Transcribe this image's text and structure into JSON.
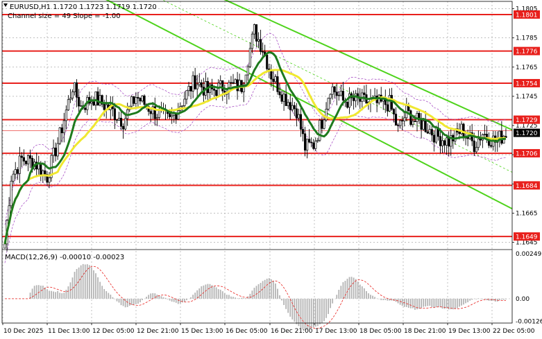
{
  "chart_data": [
    {
      "type": "candlestick",
      "title": "EURUSD,H1  1.1720 1.1723 1.1719 1.1720",
      "subtitle": "Channel size = 49 Slope = -1.00",
      "x_ticks": [
        "10 Dec 2025",
        "11 Dec 13:00",
        "12 Dec 05:00",
        "12 Dec 21:00",
        "15 Dec 13:00",
        "16 Dec 05:00",
        "16 Dec 21:00",
        "17 Dec 13:00",
        "18 Dec 05:00",
        "18 Dec 21:00",
        "19 Dec 13:00",
        "22 Dec 05:00"
      ],
      "y_ticks": [
        "1.1805",
        "1.1785",
        "1.1765",
        "1.1745",
        "1.1725",
        "1.1705",
        "1.1685",
        "1.1665",
        "1.1645"
      ],
      "ylim": [
        1.1641,
        1.181
      ],
      "current_price": "1.1720",
      "level_lines": [
        {
          "value": 1.1801,
          "label": "1.1801"
        },
        {
          "value": 1.1776,
          "label": "1.1776"
        },
        {
          "value": 1.1754,
          "label": "1.1754"
        },
        {
          "value": 1.1729,
          "label": "1.1729"
        },
        {
          "value": 1.1706,
          "label": "1.1706"
        },
        {
          "value": 1.1684,
          "label": "1.1684"
        },
        {
          "value": 1.1649,
          "label": "1.1649"
        }
      ],
      "colors": {
        "levels": "#e8201c",
        "channel": "#4ed31b",
        "ma_fast": "#1e7a1e",
        "ma_slow": "#f0e830",
        "envelope": "#a040c0",
        "candles": "#000000"
      }
    },
    {
      "type": "histogram",
      "title": "MACD(12,26,9) -0.00010 -0.00023",
      "y_ticks": [
        "0.00249",
        "0.00",
        "-0.00126"
      ],
      "ylim": [
        -0.00135,
        0.00265
      ],
      "colors": {
        "bars": "#b4b4b4",
        "signal": "#e8201c"
      }
    }
  ]
}
